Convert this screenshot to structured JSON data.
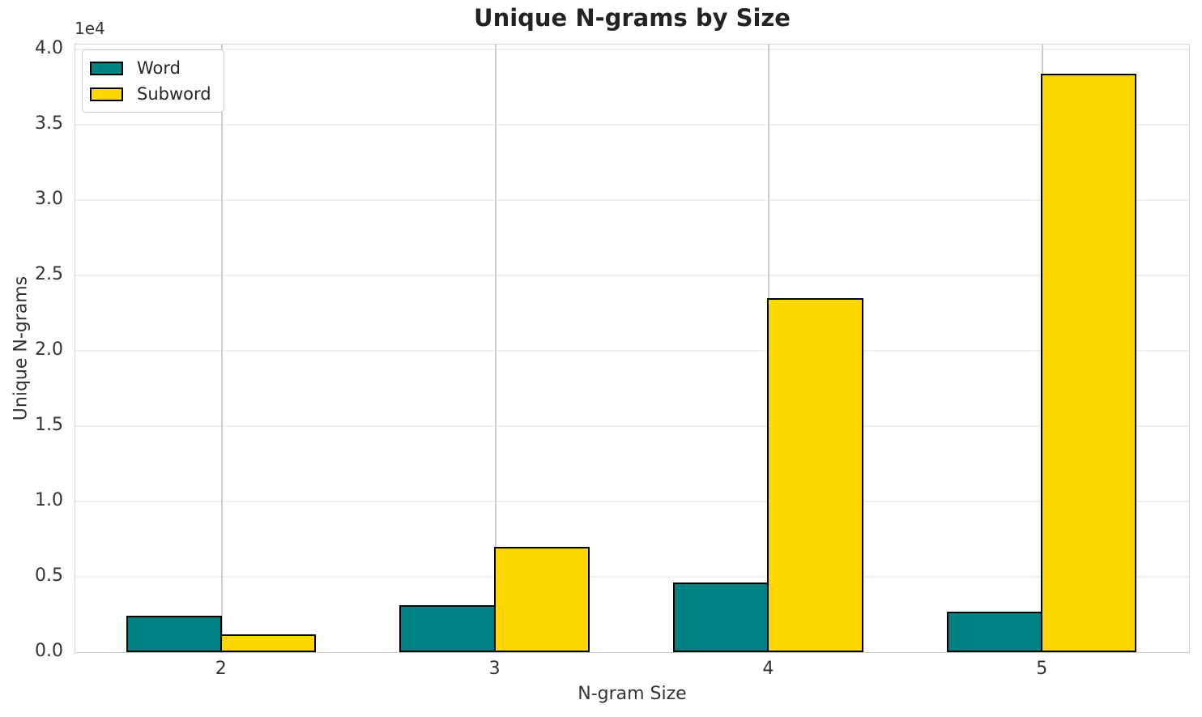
{
  "chart_data": {
    "type": "bar",
    "title": "Unique N-grams by Size",
    "xlabel": "N-gram Size",
    "ylabel": "Unique N-grams",
    "y_offset_text": "1e4",
    "categories": [
      2,
      3,
      4,
      5
    ],
    "series": [
      {
        "name": "Word",
        "color": "#008080",
        "values": [
          2400,
          3100,
          4600,
          2700
        ]
      },
      {
        "name": "Subword",
        "color": "#ffd700",
        "values": [
          1200,
          7000,
          23500,
          38400
        ]
      }
    ],
    "bar_width": 0.35,
    "bar_edge_color": "#000000",
    "xlim": [
      1.465,
      5.535
    ],
    "ylim": [
      0,
      40320
    ],
    "yticks": [
      0,
      5000,
      10000,
      15000,
      20000,
      25000,
      30000,
      35000,
      40000
    ],
    "ytick_labels": [
      "0.0",
      "0.5",
      "1.0",
      "1.5",
      "2.0",
      "2.5",
      "3.0",
      "3.5",
      "4.0"
    ],
    "xtick_labels": [
      "2",
      "3",
      "4",
      "5"
    ],
    "grid": true,
    "legend_location": "upper left"
  }
}
